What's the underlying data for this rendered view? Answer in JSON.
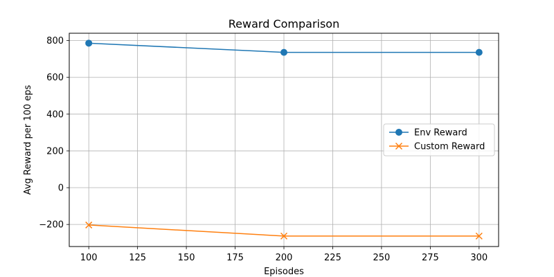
{
  "chart_data": {
    "type": "line",
    "title": "Reward Comparison",
    "xlabel": "Episodes",
    "ylabel": "Avg Reward per 100 eps",
    "xlim": [
      90,
      310
    ],
    "ylim": [
      -320,
      840
    ],
    "xticks": [
      100,
      125,
      150,
      175,
      200,
      225,
      250,
      275,
      300
    ],
    "yticks": [
      -200,
      0,
      200,
      400,
      600,
      800
    ],
    "ytick_labels": [
      "−200",
      "0",
      "200",
      "400",
      "600",
      "800"
    ],
    "grid": true,
    "legend_position": "center-right",
    "x": [
      100,
      200,
      300
    ],
    "series": [
      {
        "name": "Env Reward",
        "values": [
          786,
          736,
          736
        ],
        "color": "#1f77b4",
        "marker": "circle"
      },
      {
        "name": "Custom Reward",
        "values": [
          -203,
          -263,
          -263
        ],
        "color": "#ff7f0e",
        "marker": "x"
      }
    ]
  }
}
